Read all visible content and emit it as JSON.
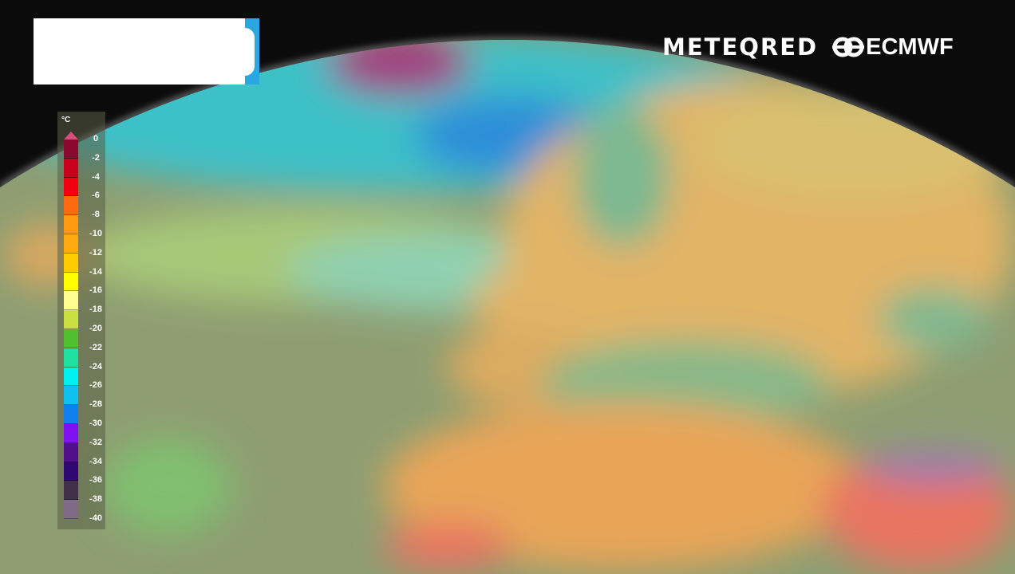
{
  "branding": {
    "meteored": "METEQRED",
    "ecmwf": "ECMWF"
  },
  "legend": {
    "unit": "°C",
    "labels": [
      "0",
      "-2",
      "-4",
      "-6",
      "-8",
      "-10",
      "-12",
      "-14",
      "-16",
      "-18",
      "-20",
      "-22",
      "-24",
      "-26",
      "-28",
      "-30",
      "-32",
      "-34",
      "-36",
      "-38",
      "-40"
    ],
    "colors": [
      "#8a0a2e",
      "#c8001e",
      "#f00010",
      "#ff6a10",
      "#ff9a10",
      "#ffaa10",
      "#ffcc00",
      "#ffff00",
      "#ffff90",
      "#c8e040",
      "#50c030",
      "#20e0a0",
      "#00f0f0",
      "#10c0f0",
      "#1080f0",
      "#8010f0",
      "#50108a",
      "#300870",
      "#40304a",
      "#806a8a"
    ]
  },
  "map_colors": {
    "background": "#0b0b0b",
    "ocean": "#8e9e72",
    "cold_band": "#3cc0c8",
    "europe": "#e2b466",
    "africa": "#e8a558",
    "hot": "#e87462",
    "greenland": "#a04080"
  }
}
